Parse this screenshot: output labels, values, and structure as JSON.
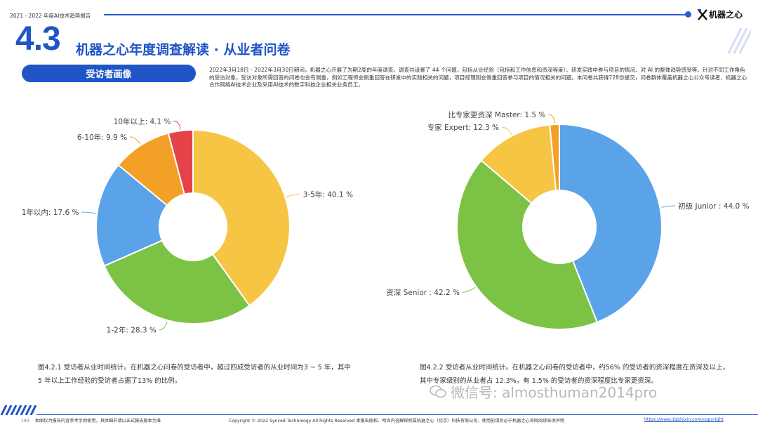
{
  "header": {
    "report_label": "2021 - 2022 年度AI技术趋势报告",
    "logo_text": "机器之心"
  },
  "section": {
    "number": "4.3",
    "title": "机器之心年度调查解读 · 从业者问卷"
  },
  "pill_label": "受访者画像",
  "intro_text": "2022年3月18日 - 2022年3月30日期间，机器之心开展了为期2周的年度调查。调查共设置了 44 个问题，包括从业经验（包括和工作信息和资深程度）、研发实践中参与项目的情况、对 AI 的整体趋势感受等。针对不同工作角色的受访对象，受访对象所需回答的问卷也会有侧重，例如工程师会侧重回答在研发中的实践相关的问题，项目经理则会侧重回答参与项目的情况相关的问题。本问卷共获得728份提交，问卷群体覆盖机器之心公众号读者、机器之心合作网络AI技术企业及采用AI技术的数字科技企业相关业务员工。",
  "colors": {
    "brand": "#1f55c6",
    "yellow": "#f6c544",
    "green": "#7cc244",
    "blue": "#5aa3e8",
    "orange": "#f2a126",
    "red": "#e5424a"
  },
  "chart_data": [
    {
      "type": "pie",
      "donut": true,
      "slices": [
        {
          "label": "3-5年",
          "value": 40.1,
          "display": "3-5年: 40.1 %",
          "color": "#f6c544"
        },
        {
          "label": "1-2年",
          "value": 28.3,
          "display": "1-2年: 28.3 %",
          "color": "#7cc244"
        },
        {
          "label": "1年以内",
          "value": 17.6,
          "display": "1年以内: 17.6 %",
          "color": "#5aa3e8"
        },
        {
          "label": "6-10年",
          "value": 9.9,
          "display": "6-10年: 9.9 %",
          "color": "#f2a126"
        },
        {
          "label": "10年以上",
          "value": 4.1,
          "display": "10年以上: 4.1 %",
          "color": "#e5424a"
        }
      ]
    },
    {
      "type": "pie",
      "donut": true,
      "slices": [
        {
          "label": "初级 Junior",
          "value": 44.0,
          "display": "初级 Junior : 44.0 %",
          "color": "#5aa3e8"
        },
        {
          "label": "资深 Senior",
          "value": 42.2,
          "display": "资深 Senior : 42.2 %",
          "color": "#7cc244"
        },
        {
          "label": "专家 Expert",
          "value": 12.3,
          "display": "专家 Expert: 12.3 %",
          "color": "#f6c544"
        },
        {
          "label": "比专家更资深 Master",
          "value": 1.5,
          "display": "比专家更资深 Master: 1.5 %",
          "color": "#f2a126"
        }
      ]
    }
  ],
  "captions": {
    "fig1": "图4.2.1 受访者从业时间统计。在机器之心问卷的受访者中，超过四成受访者的从业时间为3 ~ 5 年，其中5 年以上工作经验的受访者占据了13% 的比例。",
    "fig2": "图4.2.2 受访者从业时间统计。在机器之心问卷的受访者中，约56% 的受访者的资深程度在资深及以上，其中专家级别的从业者占 12.3%，有 1.5% 的受访者的资深程度比专家更资深。"
  },
  "watermark": "微信号: almosthuman2014pro",
  "footer": {
    "page_number": "189",
    "disclaimer": "本图仅为报告内容参考示例使用，具体细节请以正式报告版本为准",
    "copyright": "Copyright © 2022 Synced Technology  All Rights Reserved   本报告版权、所含内容解释权属机器之心（北京）科技有限公司，使用前请务必于机器之心官网阅读各项声明",
    "url": "https://www.jiqizhixin.com/copyright"
  }
}
